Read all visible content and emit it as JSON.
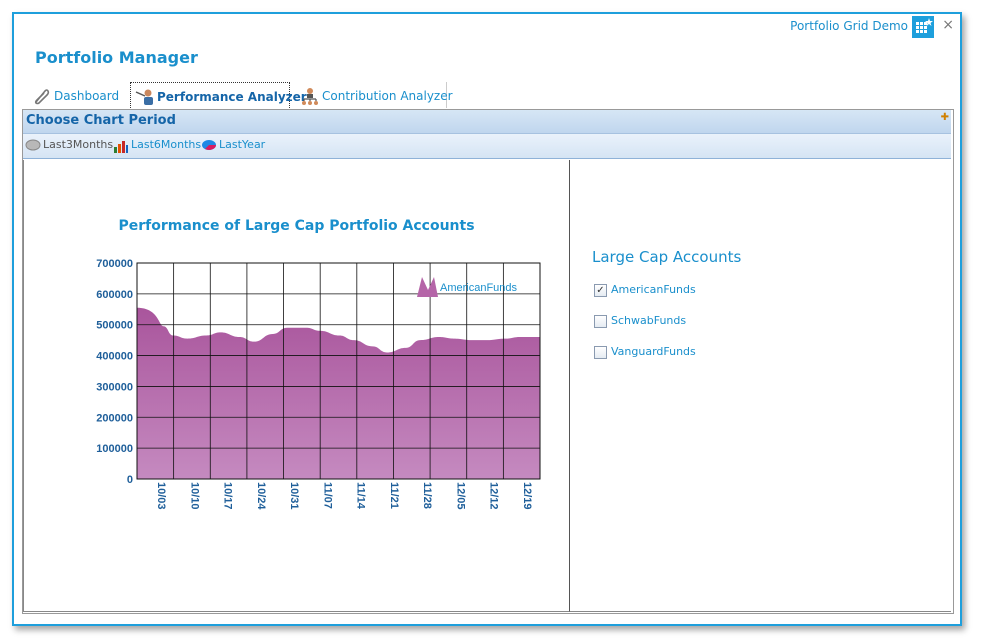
{
  "window": {
    "title": "Portfolio Grid Demo",
    "close_glyph": "×",
    "app_icon": "grid-app-icon"
  },
  "app": {
    "heading": "Portfolio Manager"
  },
  "tabs": [
    {
      "label": "Dashboard",
      "icon": "paperclip-icon",
      "active": false
    },
    {
      "label": "Performance Analyzer",
      "icon": "analyzer-person-icon",
      "active": true
    },
    {
      "label": "Contribution Analyzer",
      "icon": "org-chart-icon",
      "active": false
    }
  ],
  "period": {
    "heading": "Choose Chart Period",
    "options": [
      {
        "label": "Last3Months",
        "icon": "gray-disk-icon",
        "color": "#555555"
      },
      {
        "label": "Last6Months",
        "icon": "bar-chart-icon",
        "color": "#1a8fcc"
      },
      {
        "label": "LastYear",
        "icon": "pie-icon",
        "color": "#1a8fcc"
      }
    ]
  },
  "accounts": {
    "title": "Large Cap Accounts",
    "items": [
      {
        "label": "AmericanFunds",
        "checked": true,
        "mark": "✓"
      },
      {
        "label": "SchwabFunds",
        "checked": false,
        "mark": ""
      },
      {
        "label": "VanguardFunds",
        "checked": false,
        "mark": ""
      }
    ]
  },
  "chart_data": {
    "type": "area",
    "title": "Performance of Large Cap Portfolio Accounts",
    "xlabel": "",
    "ylabel": "",
    "ylim": [
      0,
      700000
    ],
    "y_ticks": [
      "700000",
      "600000",
      "500000",
      "400000",
      "300000",
      "200000",
      "100000",
      "0"
    ],
    "x_ticks": [
      "10/03",
      "10/10",
      "10/17",
      "10/24",
      "10/31",
      "11/07",
      "11/14",
      "11/21",
      "11/28",
      "12/05",
      "12/12",
      "12/19"
    ],
    "legend": "top-right",
    "grid": true,
    "color": "#b565a8",
    "series": [
      {
        "name": "AmericanFunds",
        "x": [
          "10/03",
          "10/05",
          "10/07",
          "10/10",
          "10/14",
          "10/17",
          "10/21",
          "10/24",
          "10/28",
          "10/31",
          "11/04",
          "11/07",
          "11/11",
          "11/14",
          "11/18",
          "11/21",
          "11/25",
          "11/28",
          "12/02",
          "12/05",
          "12/09",
          "12/12",
          "12/16",
          "12/19",
          "12/22"
        ],
        "values": [
          555000,
          495000,
          465000,
          455000,
          465000,
          475000,
          460000,
          445000,
          470000,
          490000,
          490000,
          480000,
          465000,
          450000,
          430000,
          410000,
          425000,
          450000,
          460000,
          455000,
          450000,
          450000,
          455000,
          460000,
          460000
        ]
      }
    ]
  }
}
